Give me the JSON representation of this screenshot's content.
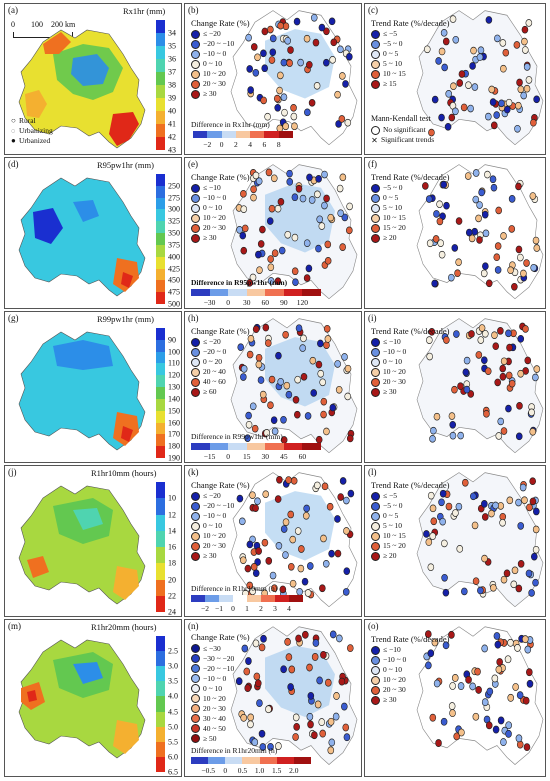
{
  "panels": {
    "a": {
      "label": "(a)",
      "title": "Rx1hr (mm)",
      "ticks": [
        "34",
        "35",
        "36",
        "37",
        "38",
        "39",
        "40",
        "41",
        "42",
        "43"
      ],
      "colors": [
        "#1a2fd0",
        "#2c8ee8",
        "#38c8e0",
        "#4fd4b0",
        "#63c850",
        "#a8d840",
        "#e8e030",
        "#f4b030",
        "#ef7020",
        "#e02818"
      ]
    },
    "b": {
      "label": "(b)",
      "legend_title": "Change Rate (%)",
      "legend": [
        "≤ −20",
        "−20 ~ −10",
        "−10 ~ 0",
        "0 ~ 10",
        "10 ~ 20",
        "20 ~ 30",
        "≥ 30"
      ],
      "bar_title": "Difference in Rx1hr (mm)",
      "bar_ticks": [
        "−2",
        "0",
        "2",
        "4",
        "6",
        "8"
      ]
    },
    "c": {
      "label": "(c)",
      "legend_title": "Trend Rate (%/decade)",
      "legend": [
        "≤ −5",
        "−5 ~ 0",
        "0 ~ 5",
        "5 ~ 10",
        "10 ~ 15",
        "≥ 15"
      ],
      "mk_title": "Mann-Kendall test",
      "mk_items": [
        "No significant",
        "Significant trends"
      ]
    },
    "d": {
      "label": "(d)",
      "title": "R95pw1hr (mm)",
      "ticks": [
        "250",
        "275",
        "300",
        "325",
        "350",
        "375",
        "400",
        "425",
        "450",
        "475",
        "500"
      ]
    },
    "e": {
      "label": "(e)",
      "legend_title": "Change Rate (%)",
      "legend": [
        "≤ −10",
        "−10 ~ 0",
        "0 ~ 10",
        "10 ~ 20",
        "20 ~ 30",
        "≥ 30"
      ],
      "bar_title": "Difference in R95pw1hr (mm)",
      "bar_ticks": [
        "−30",
        "0",
        "30",
        "60",
        "90",
        "120"
      ]
    },
    "f": {
      "label": "(f)",
      "legend_title": "Trend Rate (%/decade)",
      "legend": [
        "−5 ~ 0",
        "0 ~ 5",
        "5 ~ 10",
        "10 ~ 15",
        "15 ~ 20",
        "≥ 20"
      ]
    },
    "g": {
      "label": "(g)",
      "title": "R99pw1hr (mm)",
      "ticks": [
        "90",
        "100",
        "110",
        "120",
        "130",
        "140",
        "150",
        "160",
        "170",
        "180",
        "190"
      ]
    },
    "h": {
      "label": "(h)",
      "legend_title": "Change Rate (%)",
      "legend": [
        "≤ −20",
        "−20 ~ 0",
        "0 ~ 20",
        "20 ~ 40",
        "40 ~ 60",
        "≥ 60"
      ],
      "bar_title": "Difference in R99pw1hr (mm)",
      "bar_ticks": [
        "−15",
        "0",
        "15",
        "30",
        "45",
        "60"
      ]
    },
    "i": {
      "label": "(i)",
      "legend_title": "Trend Rate (%/decade)",
      "legend": [
        "≤ −10",
        "−10 ~ 0",
        "0 ~ 10",
        "10 ~ 20",
        "20 ~ 30",
        "≥ 30"
      ]
    },
    "j": {
      "label": "(j)",
      "title": "R1hr10mm (hours)",
      "ticks": [
        "10",
        "12",
        "14",
        "16",
        "18",
        "20",
        "22",
        "24"
      ]
    },
    "k": {
      "label": "(k)",
      "legend_title": "Change Rate (%)",
      "legend": [
        "≤ −20",
        "−20 ~ −10",
        "−10 ~ 0",
        "0 ~ 10",
        "10 ~ 20",
        "20 ~ 30",
        "≥ 30"
      ],
      "bar_title": "Difference in R1hr10mm (h)",
      "bar_ticks": [
        "−2",
        "−1",
        "0",
        "1",
        "2",
        "3",
        "4"
      ]
    },
    "l": {
      "label": "(l)",
      "legend_title": "Trend Rate (%/decade)",
      "legend": [
        "≤ −5",
        "−5 ~ 0",
        "0 ~ 5",
        "5 ~ 10",
        "10 ~ 15",
        "15 ~ 20",
        "≥ 20"
      ]
    },
    "m": {
      "label": "(m)",
      "title": "R1hr20mm (hours)",
      "ticks": [
        "2.5",
        "3.0",
        "3.5",
        "4.0",
        "4.5",
        "5.0",
        "5.5",
        "6.0",
        "6.5"
      ]
    },
    "n": {
      "label": "(n)",
      "legend_title": "Change Rate (%)",
      "legend": [
        "≤ −30",
        "−30 ~ −20",
        "−20 ~ −10",
        "−10 ~ 0",
        "0 ~ 10",
        "10 ~ 20",
        "20 ~ 30",
        "30 ~ 40",
        "40 ~ 50",
        "≥ 50"
      ],
      "bar_title": "Difference in R1hr20mm (h)",
      "bar_ticks": [
        "−0.5",
        "0",
        "0.5",
        "1.0",
        "1.5",
        "2.0"
      ]
    },
    "o": {
      "label": "(o)",
      "legend_title": "Trend Rate (%/decade)",
      "legend": [
        "≤ −10",
        "−10 ~ 0",
        "0 ~ 10",
        "10 ~ 20",
        "20 ~ 30",
        "≥ 30"
      ]
    }
  },
  "scale": {
    "labels": [
      "0",
      "100",
      "200 km"
    ]
  },
  "urban_legend": [
    "Rural",
    "Urbanizing",
    "Urbanized"
  ],
  "dot_colors": {
    "seven": [
      "#1520a8",
      "#3a5cd0",
      "#8fb2ec",
      "#f5efe0",
      "#f4c08a",
      "#e0603a",
      "#a81818"
    ],
    "six": [
      "#1520a8",
      "#6a90e0",
      "#dfe8f6",
      "#f6d0a8",
      "#e0603a",
      "#a81818"
    ],
    "ten": [
      "#0d1890",
      "#2640c0",
      "#4f7ad8",
      "#9bbcf0",
      "#eef0f4",
      "#f8d8b8",
      "#f4b080",
      "#e8704a",
      "#c83828",
      "#901010"
    ]
  }
}
